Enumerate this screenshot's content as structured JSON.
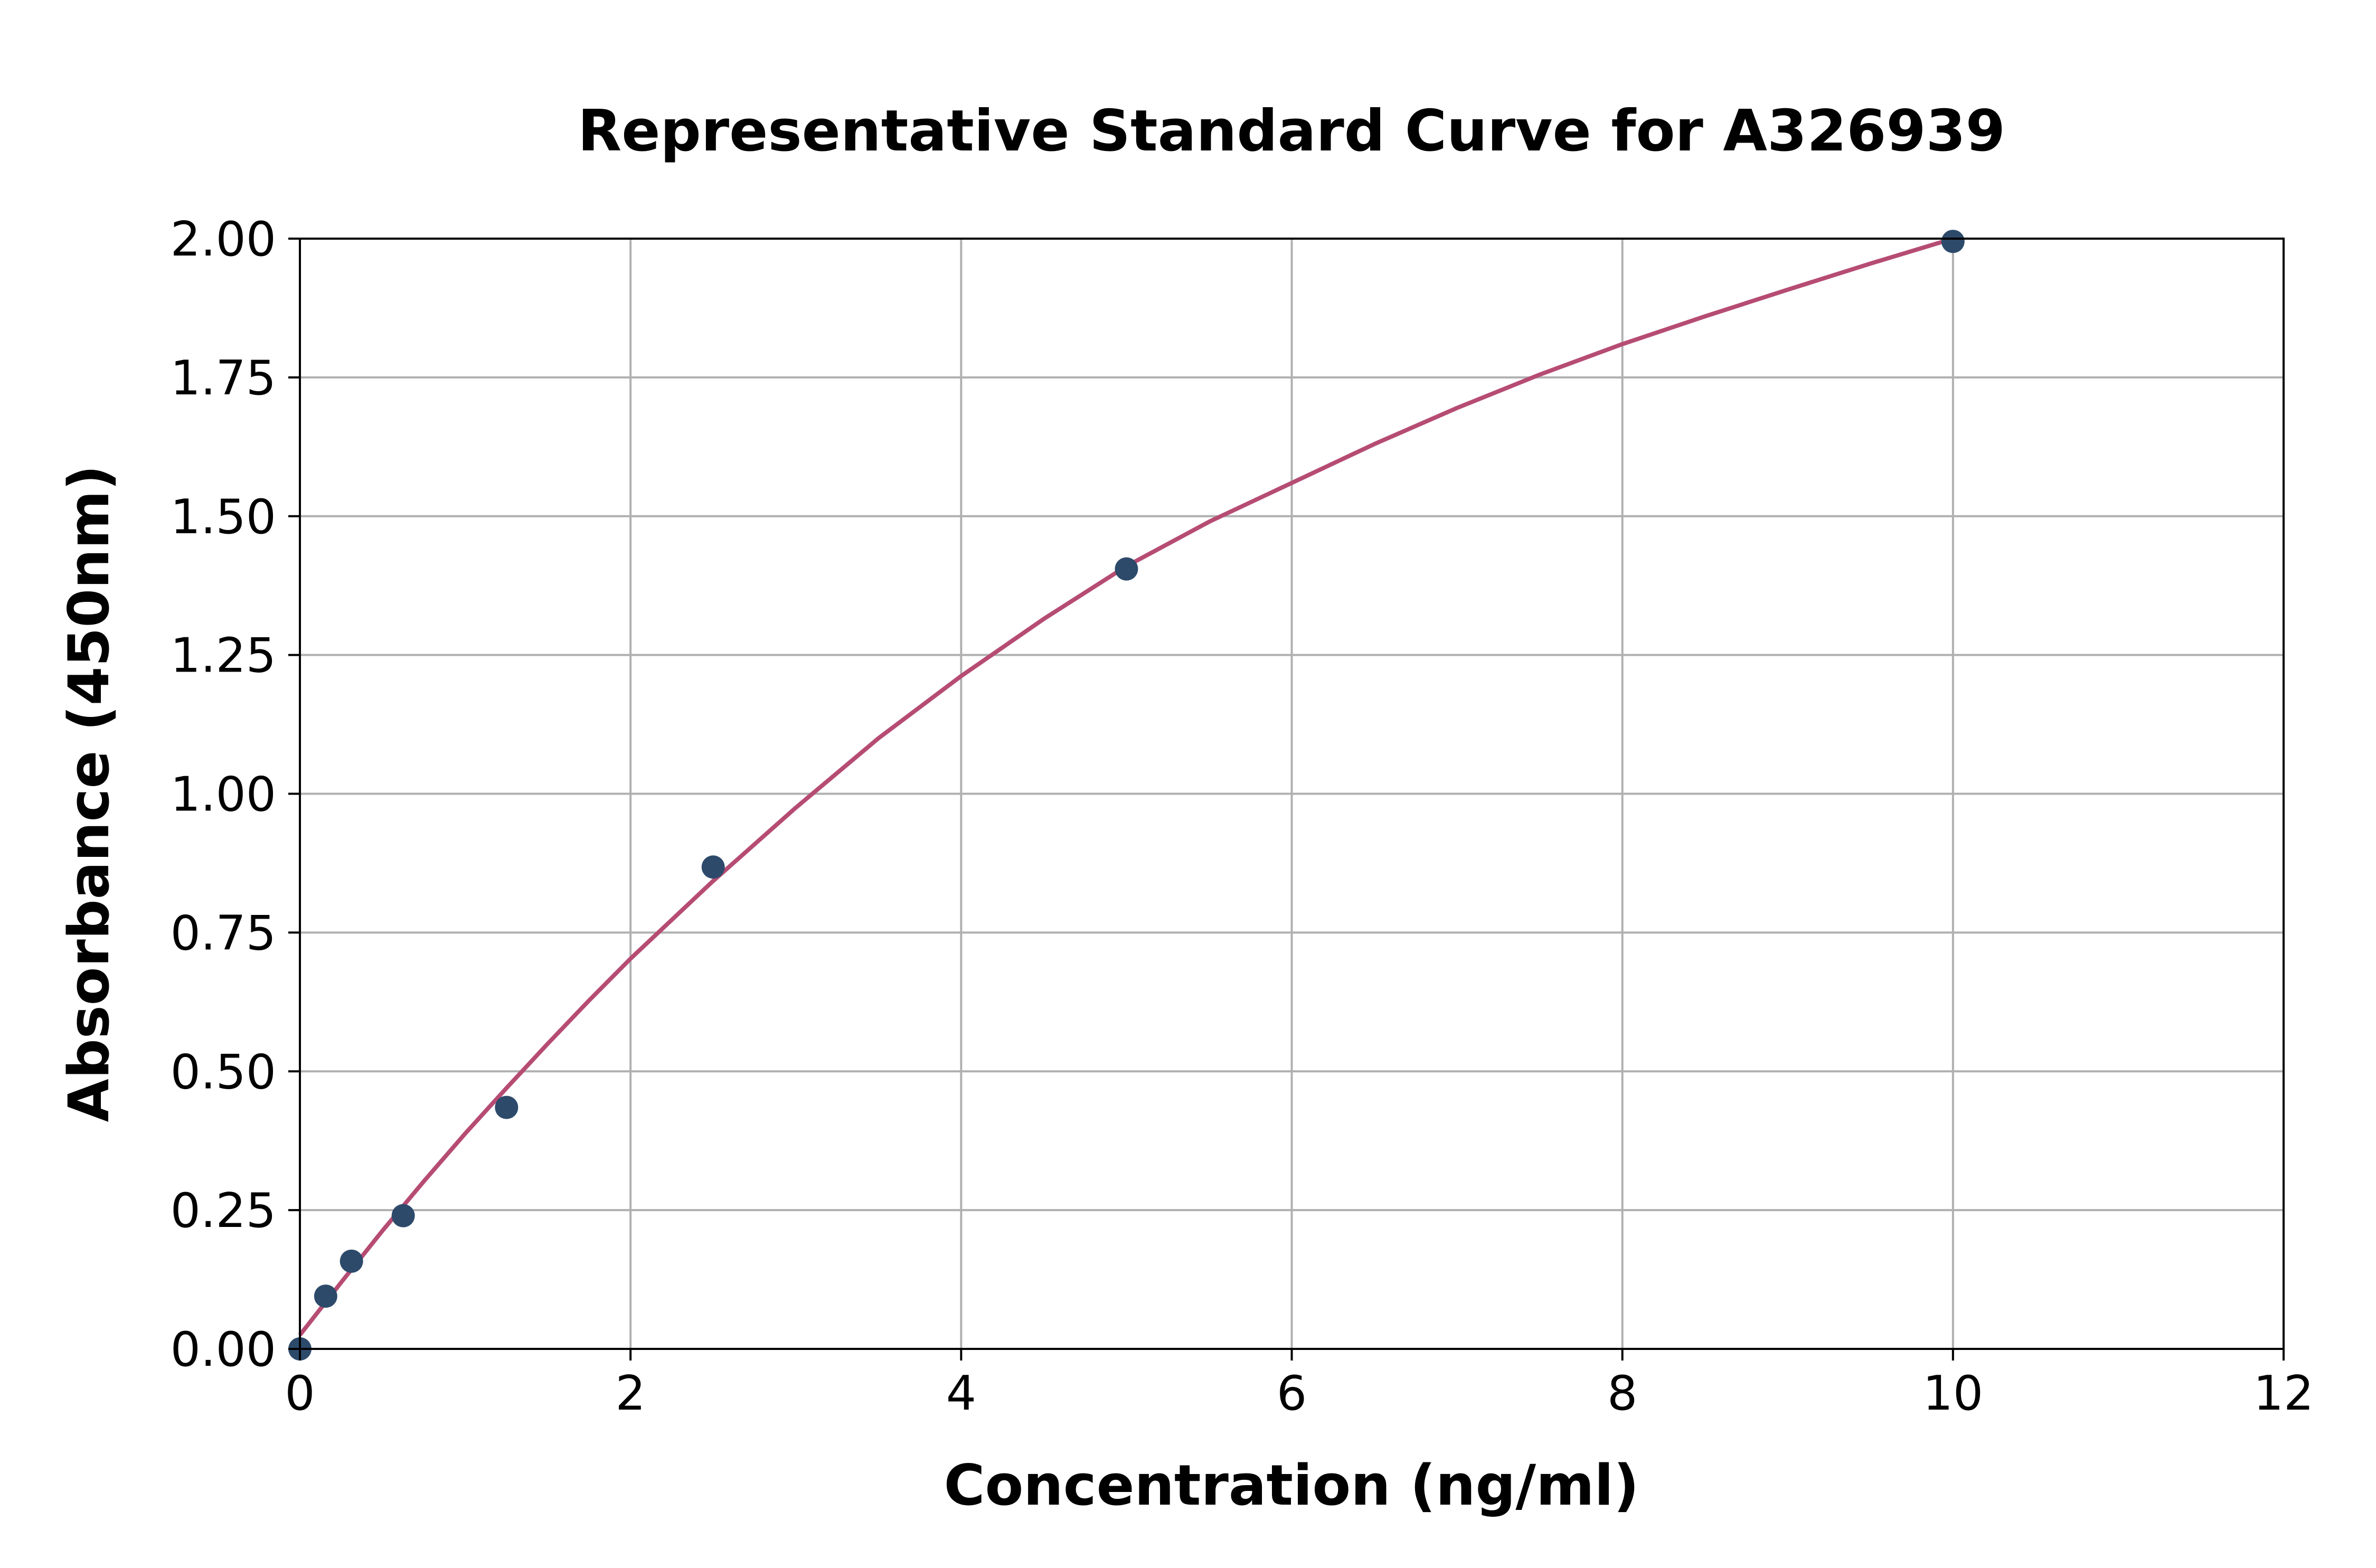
{
  "chart_data": {
    "type": "scatter",
    "title": "Representative Standard Curve for A326939",
    "xlabel": "Concentration (ng/ml)",
    "ylabel": "Absorbance (450nm)",
    "xlim": [
      0,
      12
    ],
    "ylim": [
      0,
      2.0
    ],
    "xticks": [
      0,
      2,
      4,
      6,
      8,
      10,
      12
    ],
    "xtick_labels": [
      "0",
      "2",
      "4",
      "6",
      "8",
      "10",
      "12"
    ],
    "yticks": [
      0,
      0.25,
      0.5,
      0.75,
      1.0,
      1.25,
      1.5,
      1.75,
      2.0
    ],
    "ytick_labels": [
      "0.00",
      "0.25",
      "0.50",
      "0.75",
      "1.00",
      "1.25",
      "1.50",
      "1.75",
      "2.00"
    ],
    "grid": true,
    "series": [
      {
        "kind": "scatter",
        "color": "#2d4a6b",
        "x": [
          0,
          0.156,
          0.312,
          0.625,
          1.25,
          2.5,
          5,
          10
        ],
        "y": [
          0.0,
          0.095,
          0.158,
          0.24,
          0.435,
          0.868,
          1.405,
          1.995
        ]
      },
      {
        "kind": "line",
        "color": "#b64c73",
        "x": [
          0,
          0.25,
          0.5,
          0.75,
          1,
          1.25,
          1.5,
          1.75,
          2,
          2.5,
          3,
          3.5,
          4,
          4.5,
          5,
          5.5,
          6,
          6.5,
          7,
          7.5,
          8,
          8.5,
          9,
          9.5,
          10
        ],
        "y": [
          0.025,
          0.12,
          0.213,
          0.302,
          0.388,
          0.47,
          0.55,
          0.628,
          0.703,
          0.843,
          0.975,
          1.1,
          1.212,
          1.315,
          1.41,
          1.49,
          1.56,
          1.63,
          1.695,
          1.755,
          1.81,
          1.86,
          1.908,
          1.955,
          2.0
        ]
      }
    ]
  }
}
